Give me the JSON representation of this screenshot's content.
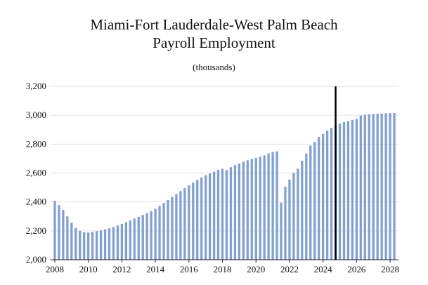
{
  "chart_data": {
    "type": "bar",
    "title": "Miami-Fort Lauderdale-West Palm Beach",
    "subtitle": "Payroll Employment",
    "unit_label": "(thousands)",
    "ylim": [
      2000,
      3200
    ],
    "yticks": [
      2000,
      2200,
      2400,
      2600,
      2800,
      3000,
      3200
    ],
    "ytick_labels": [
      "2,000",
      "2,200",
      "2,400",
      "2,600",
      "2,800",
      "3,000",
      "3,200"
    ],
    "xlim": [
      2007.75,
      2028.5
    ],
    "xticks": [
      2008,
      2010,
      2012,
      2014,
      2016,
      2018,
      2020,
      2022,
      2024,
      2026,
      2028
    ],
    "xtick_labels": [
      "2008",
      "2010",
      "2012",
      "2014",
      "2016",
      "2018",
      "2020",
      "2022",
      "2024",
      "2026",
      "2028"
    ],
    "forecast_line_x": 2024.75,
    "grid": "horizontal",
    "bar_color": "#7f9fd8",
    "x": [
      2008.0,
      2008.25,
      2008.5,
      2008.75,
      2009.0,
      2009.25,
      2009.5,
      2009.75,
      2010.0,
      2010.25,
      2010.5,
      2010.75,
      2011.0,
      2011.25,
      2011.5,
      2011.75,
      2012.0,
      2012.25,
      2012.5,
      2012.75,
      2013.0,
      2013.25,
      2013.5,
      2013.75,
      2014.0,
      2014.25,
      2014.5,
      2014.75,
      2015.0,
      2015.25,
      2015.5,
      2015.75,
      2016.0,
      2016.25,
      2016.5,
      2016.75,
      2017.0,
      2017.25,
      2017.5,
      2017.75,
      2018.0,
      2018.25,
      2018.5,
      2018.75,
      2019.0,
      2019.25,
      2019.5,
      2019.75,
      2020.0,
      2020.25,
      2020.5,
      2020.75,
      2021.0,
      2021.25,
      2021.5,
      2021.75,
      2022.0,
      2022.25,
      2022.5,
      2022.75,
      2023.0,
      2023.25,
      2023.5,
      2023.75,
      2024.0,
      2024.25,
      2024.5,
      2024.75,
      2025.0,
      2025.25,
      2025.5,
      2025.75,
      2026.0,
      2026.25,
      2026.5,
      2026.75,
      2027.0,
      2027.25,
      2027.5,
      2027.75,
      2028.0,
      2028.25
    ],
    "values": [
      2408,
      2378,
      2345,
      2300,
      2255,
      2220,
      2200,
      2190,
      2188,
      2192,
      2198,
      2203,
      2210,
      2218,
      2227,
      2237,
      2248,
      2260,
      2272,
      2285,
      2297,
      2310,
      2322,
      2336,
      2353,
      2372,
      2393,
      2413,
      2434,
      2455,
      2475,
      2495,
      2515,
      2534,
      2552,
      2570,
      2585,
      2598,
      2610,
      2622,
      2630,
      2620,
      2640,
      2654,
      2666,
      2678,
      2688,
      2697,
      2705,
      2714,
      2722,
      2736,
      2745,
      2750,
      2395,
      2505,
      2555,
      2600,
      2630,
      2685,
      2735,
      2790,
      2815,
      2850,
      2870,
      2893,
      2912,
      2928,
      2942,
      2952,
      2960,
      2968,
      2975,
      2998,
      3003,
      3006,
      3008,
      3010,
      3012,
      3014,
      3015,
      3016
    ]
  }
}
